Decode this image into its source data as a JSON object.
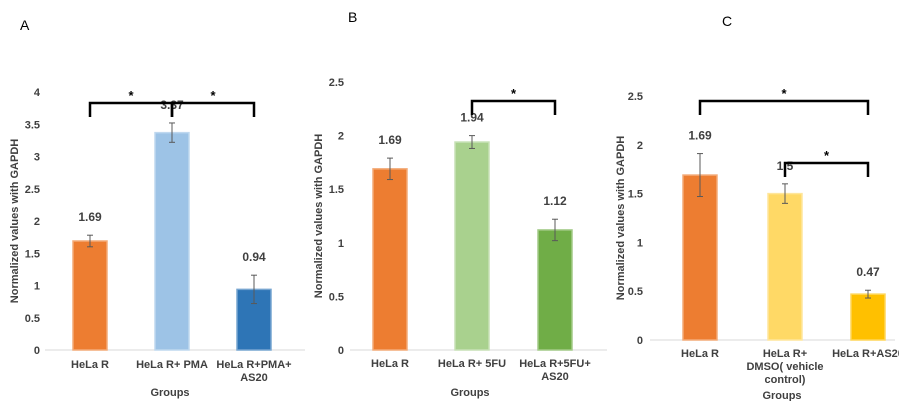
{
  "chart_data": [
    {
      "type": "bar",
      "panel_label": "A",
      "categories": [
        "HeLa R",
        "HeLa R+ PMA",
        "HeLa R+PMA+ AS20"
      ],
      "values": [
        1.69,
        3.37,
        0.94
      ],
      "errors": [
        0.09,
        0.15,
        0.22
      ],
      "data_labels": [
        "1.69",
        "3.37",
        "0.94"
      ],
      "colors": [
        "#ED7D31",
        "#9DC3E6",
        "#2E75B6"
      ],
      "ylim": [
        0,
        4
      ],
      "yticks": [
        "0",
        "0.5",
        "1",
        "1.5",
        "2",
        "2.5",
        "3",
        "3.5",
        "4"
      ],
      "xlabel": "Groups",
      "ylabel": "Normalized values with GAPDH",
      "significance": [
        {
          "from": 0,
          "to": 1,
          "label": "*"
        },
        {
          "from": 1,
          "to": 2,
          "label": "*"
        }
      ]
    },
    {
      "type": "bar",
      "panel_label": "B",
      "categories": [
        "HeLa R",
        "HeLa R+ 5FU",
        "HeLa R+5FU+ AS20"
      ],
      "values": [
        1.69,
        1.94,
        1.12
      ],
      "errors": [
        0.1,
        0.06,
        0.1
      ],
      "data_labels": [
        "1.69",
        "1.94",
        "1.12"
      ],
      "colors": [
        "#ED7D31",
        "#A9D18E",
        "#70AD47"
      ],
      "ylim": [
        0,
        2.5
      ],
      "yticks": [
        "0",
        "0.5",
        "1",
        "1.5",
        "2",
        "2.5"
      ],
      "xlabel": "Groups",
      "ylabel": "Normalized values with GAPDH",
      "significance": [
        {
          "from": 1,
          "to": 2,
          "label": "*"
        }
      ]
    },
    {
      "type": "bar",
      "panel_label": "C",
      "categories": [
        "HeLa R",
        "HeLa R+ DMSO( vehicle control)",
        "HeLa R+AS20"
      ],
      "values": [
        1.69,
        1.5,
        0.47
      ],
      "errors": [
        0.22,
        0.1,
        0.04
      ],
      "data_labels": [
        "1.69",
        "1.5",
        "0.47"
      ],
      "colors": [
        "#ED7D31",
        "#FFD966",
        "#FFC000"
      ],
      "ylim": [
        0,
        2.5
      ],
      "yticks": [
        "0",
        "0.5",
        "1",
        "1.5",
        "2",
        "2.5"
      ],
      "xlabel": "Groups",
      "ylabel": "Normalized values with GAPDH",
      "significance": [
        {
          "from": 0,
          "to": 2,
          "label": "*"
        },
        {
          "from": 1,
          "to": 2,
          "label": "*"
        }
      ]
    }
  ]
}
